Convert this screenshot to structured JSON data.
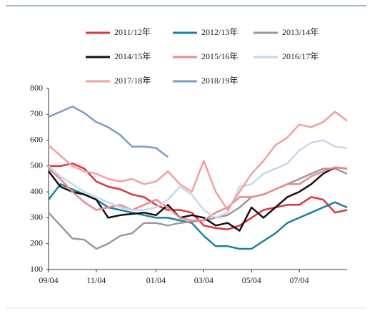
{
  "chart_data": {
    "type": "line",
    "categories": [
      "09/04",
      null,
      null,
      null,
      "11/04",
      null,
      null,
      null,
      null,
      "01/04",
      null,
      null,
      null,
      "03/04",
      null,
      null,
      null,
      "05/04",
      null,
      null,
      null,
      "07/04",
      null,
      null,
      null,
      null
    ],
    "ylim": [
      100,
      800
    ],
    "yticks": [
      100,
      200,
      300,
      400,
      500,
      600,
      700,
      800
    ],
    "series": [
      {
        "name": "2011/12年",
        "color": "#d9373a",
        "values": [
          500,
          500,
          510,
          490,
          440,
          420,
          410,
          390,
          380,
          350,
          330,
          330,
          320,
          270,
          260,
          255,
          270,
          300,
          330,
          340,
          350,
          350,
          380,
          370,
          320,
          330
        ]
      },
      {
        "name": "2012/13年",
        "color": "#1d7fa3",
        "values": [
          370,
          430,
          410,
          390,
          370,
          340,
          330,
          320,
          310,
          300,
          300,
          290,
          280,
          230,
          190,
          190,
          180,
          180,
          210,
          240,
          280,
          300,
          320,
          340,
          360,
          340
        ]
      },
      {
        "name": "2013/14年",
        "color": "#9a9a9a",
        "values": [
          320,
          270,
          220,
          215,
          180,
          200,
          230,
          240,
          280,
          280,
          270,
          280,
          285,
          290,
          300,
          310,
          340,
          380,
          390,
          410,
          430,
          450,
          470,
          490,
          490,
          470
        ]
      },
      {
        "name": "2014/15年",
        "color": "#111111",
        "values": [
          480,
          420,
          400,
          390,
          370,
          300,
          310,
          315,
          320,
          310,
          350,
          300,
          310,
          300,
          270,
          280,
          250,
          340,
          300,
          340,
          380,
          400,
          430,
          470,
          495,
          490
        ]
      },
      {
        "name": "2015/16年",
        "color": "#e88a8a",
        "values": [
          490,
          450,
          400,
          360,
          330,
          340,
          350,
          330,
          350,
          370,
          340,
          300,
          290,
          290,
          320,
          340,
          380,
          380,
          390,
          410,
          430,
          430,
          460,
          480,
          495,
          490
        ]
      },
      {
        "name": "2016/17年",
        "color": "#c7d7ea",
        "values": [
          500,
          460,
          430,
          400,
          380,
          360,
          340,
          330,
          330,
          340,
          370,
          420,
          390,
          330,
          300,
          320,
          420,
          430,
          470,
          490,
          510,
          560,
          590,
          600,
          575,
          570
        ]
      },
      {
        "name": "2017/18年",
        "color": "#f2a0a0",
        "values": [
          580,
          540,
          500,
          480,
          470,
          450,
          440,
          450,
          430,
          440,
          480,
          430,
          400,
          520,
          400,
          330,
          400,
          470,
          520,
          580,
          610,
          660,
          650,
          670,
          710,
          675
        ]
      },
      {
        "name": "2018/19年",
        "color": "#7a9ec8",
        "values": [
          690,
          710,
          730,
          705,
          670,
          650,
          620,
          575,
          575,
          570,
          535,
          null,
          null,
          null,
          null,
          null,
          null,
          null,
          null,
          null,
          null,
          null,
          null,
          null,
          null,
          null
        ]
      }
    ]
  }
}
